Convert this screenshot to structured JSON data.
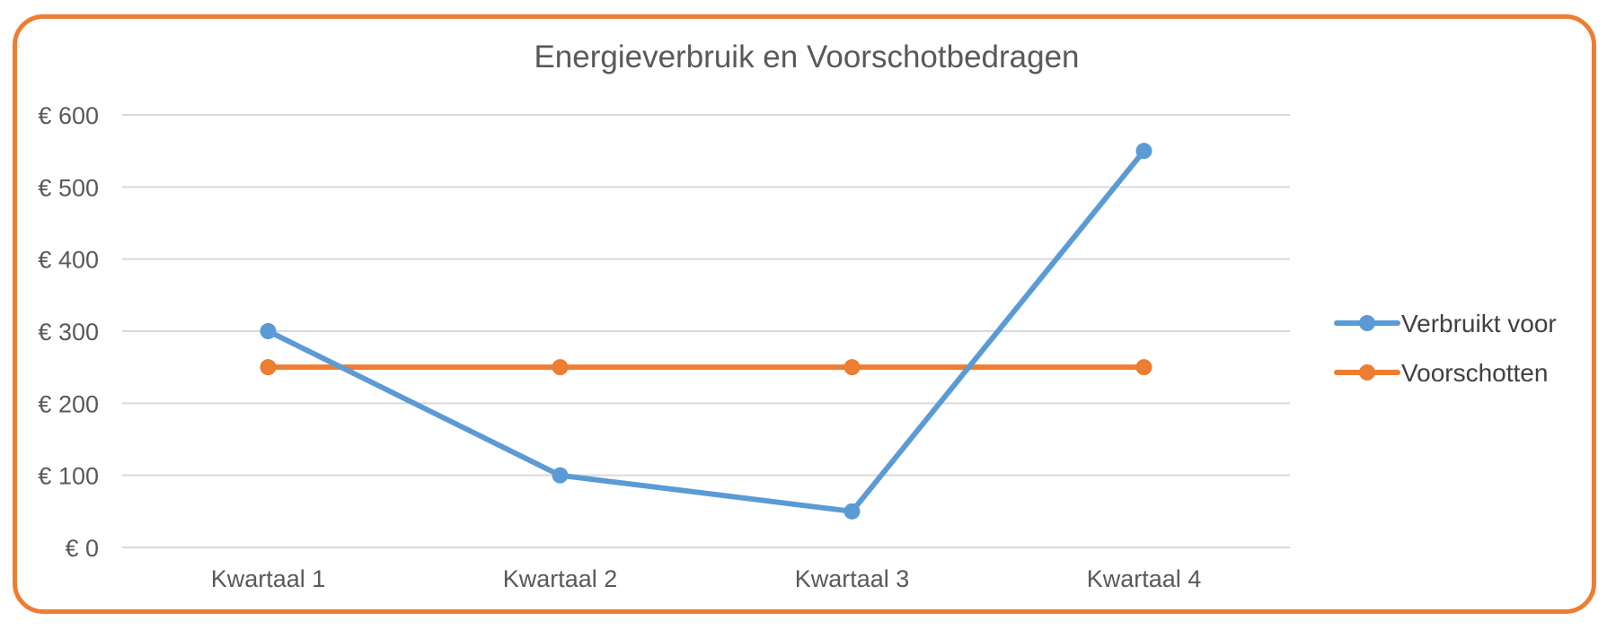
{
  "chart_data": {
    "type": "line",
    "title": "Energieverbruik en Voorschotbedragen",
    "categories": [
      "Kwartaal 1",
      "Kwartaal 2",
      "Kwartaal 3",
      "Kwartaal 4"
    ],
    "series": [
      {
        "name": "Verbruikt voor",
        "values": [
          300,
          100,
          50,
          550
        ],
        "color": "#5B9BD5"
      },
      {
        "name": "Voorschotten",
        "values": [
          250,
          250,
          250,
          250
        ],
        "color": "#ED7D31"
      }
    ],
    "y_ticks": [
      "€ 0",
      "€ 100",
      "€ 200",
      "€ 300",
      "€ 400",
      "€ 500",
      "€ 600"
    ],
    "ylim": [
      0,
      600
    ],
    "grid": true,
    "legend_position": "right",
    "border_color": "#ED7D31"
  }
}
